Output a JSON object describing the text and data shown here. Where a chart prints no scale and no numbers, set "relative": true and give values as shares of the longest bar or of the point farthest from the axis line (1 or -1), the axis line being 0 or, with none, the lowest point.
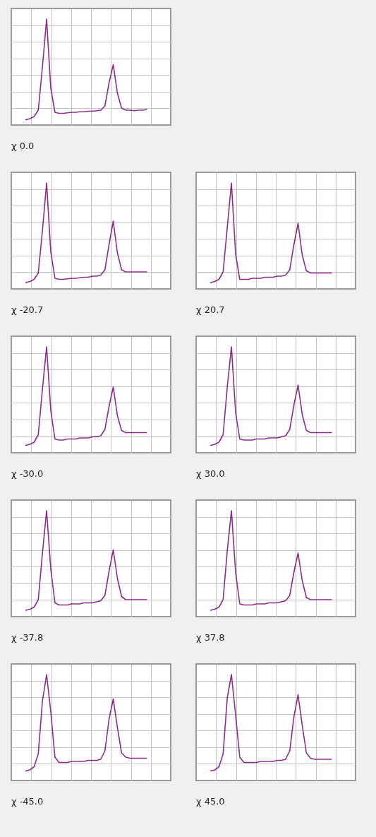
{
  "chart_data": [
    {
      "type": "line",
      "title": "χ 0.0",
      "relative": true,
      "grid": true,
      "color": "#8e2c8e",
      "categories": [
        null,
        null,
        null,
        null,
        null,
        null,
        null,
        null,
        null,
        null,
        null,
        null,
        null,
        null,
        null,
        null,
        null,
        null,
        null,
        null,
        null,
        null,
        null,
        null,
        null,
        null,
        null,
        null,
        null,
        null
      ],
      "values": [
        0.05,
        0.06,
        0.08,
        0.14,
        0.55,
        1.0,
        0.35,
        0.12,
        0.11,
        0.11,
        0.115,
        0.12,
        0.12,
        0.125,
        0.125,
        0.13,
        0.13,
        0.135,
        0.14,
        0.18,
        0.4,
        0.57,
        0.3,
        0.16,
        0.14,
        0.14,
        0.135,
        0.14,
        0.14,
        0.145
      ]
    },
    {
      "type": "line",
      "title": "χ -20.7",
      "relative": true,
      "grid": true,
      "color": "#8e2c8e",
      "categories": [
        null,
        null,
        null,
        null,
        null,
        null,
        null,
        null,
        null,
        null,
        null,
        null,
        null,
        null,
        null,
        null,
        null,
        null,
        null,
        null,
        null,
        null,
        null,
        null,
        null,
        null,
        null,
        null,
        null,
        null
      ],
      "values": [
        0.06,
        0.07,
        0.09,
        0.15,
        0.55,
        1.0,
        0.35,
        0.1,
        0.09,
        0.09,
        0.095,
        0.1,
        0.1,
        0.105,
        0.11,
        0.11,
        0.12,
        0.12,
        0.13,
        0.18,
        0.42,
        0.64,
        0.34,
        0.18,
        0.16,
        0.16,
        0.16,
        0.16,
        0.16,
        0.16
      ]
    },
    {
      "type": "line",
      "title": "χ 20.7",
      "relative": true,
      "grid": true,
      "color": "#8e2c8e",
      "categories": [
        null,
        null,
        null,
        null,
        null,
        null,
        null,
        null,
        null,
        null,
        null,
        null,
        null,
        null,
        null,
        null,
        null,
        null,
        null,
        null,
        null,
        null,
        null,
        null,
        null,
        null,
        null,
        null,
        null,
        null
      ],
      "values": [
        0.06,
        0.07,
        0.09,
        0.16,
        0.58,
        1.0,
        0.33,
        0.09,
        0.09,
        0.09,
        0.1,
        0.1,
        0.1,
        0.11,
        0.11,
        0.11,
        0.12,
        0.12,
        0.13,
        0.18,
        0.42,
        0.62,
        0.32,
        0.17,
        0.15,
        0.15,
        0.15,
        0.15,
        0.15,
        0.15
      ]
    },
    {
      "type": "line",
      "title": "χ -30.0",
      "relative": true,
      "grid": true,
      "color": "#8e2c8e",
      "categories": [
        null,
        null,
        null,
        null,
        null,
        null,
        null,
        null,
        null,
        null,
        null,
        null,
        null,
        null,
        null,
        null,
        null,
        null,
        null,
        null,
        null,
        null,
        null,
        null,
        null,
        null,
        null,
        null,
        null,
        null
      ],
      "values": [
        0.07,
        0.08,
        0.1,
        0.17,
        0.6,
        1.0,
        0.4,
        0.13,
        0.12,
        0.12,
        0.13,
        0.13,
        0.13,
        0.14,
        0.14,
        0.14,
        0.15,
        0.15,
        0.16,
        0.22,
        0.44,
        0.62,
        0.35,
        0.21,
        0.19,
        0.19,
        0.19,
        0.19,
        0.19,
        0.19
      ]
    },
    {
      "type": "line",
      "title": "χ 30.0",
      "relative": true,
      "grid": true,
      "color": "#8e2c8e",
      "categories": [
        null,
        null,
        null,
        null,
        null,
        null,
        null,
        null,
        null,
        null,
        null,
        null,
        null,
        null,
        null,
        null,
        null,
        null,
        null,
        null,
        null,
        null,
        null,
        null,
        null,
        null,
        null,
        null,
        null,
        null
      ],
      "values": [
        0.07,
        0.08,
        0.1,
        0.17,
        0.62,
        1.0,
        0.38,
        0.13,
        0.12,
        0.12,
        0.12,
        0.13,
        0.13,
        0.13,
        0.14,
        0.14,
        0.14,
        0.15,
        0.16,
        0.22,
        0.45,
        0.64,
        0.36,
        0.21,
        0.19,
        0.19,
        0.19,
        0.19,
        0.19,
        0.19
      ]
    },
    {
      "type": "line",
      "title": "χ -37.8",
      "relative": true,
      "grid": true,
      "color": "#8e2c8e",
      "categories": [
        null,
        null,
        null,
        null,
        null,
        null,
        null,
        null,
        null,
        null,
        null,
        null,
        null,
        null,
        null,
        null,
        null,
        null,
        null,
        null,
        null,
        null,
        null,
        null,
        null,
        null,
        null,
        null,
        null,
        null
      ],
      "values": [
        0.06,
        0.07,
        0.09,
        0.16,
        0.6,
        1.0,
        0.45,
        0.13,
        0.11,
        0.11,
        0.11,
        0.12,
        0.12,
        0.12,
        0.13,
        0.13,
        0.13,
        0.14,
        0.15,
        0.2,
        0.43,
        0.63,
        0.36,
        0.19,
        0.16,
        0.16,
        0.16,
        0.16,
        0.16,
        0.16
      ]
    },
    {
      "type": "line",
      "title": "χ 37.8",
      "relative": true,
      "grid": true,
      "color": "#8e2c8e",
      "categories": [
        null,
        null,
        null,
        null,
        null,
        null,
        null,
        null,
        null,
        null,
        null,
        null,
        null,
        null,
        null,
        null,
        null,
        null,
        null,
        null,
        null,
        null,
        null,
        null,
        null,
        null,
        null,
        null,
        null,
        null
      ],
      "values": [
        0.06,
        0.07,
        0.09,
        0.16,
        0.62,
        1.0,
        0.42,
        0.12,
        0.11,
        0.11,
        0.11,
        0.12,
        0.12,
        0.12,
        0.13,
        0.13,
        0.13,
        0.14,
        0.15,
        0.2,
        0.42,
        0.6,
        0.34,
        0.18,
        0.16,
        0.16,
        0.16,
        0.16,
        0.16,
        0.16
      ]
    },
    {
      "type": "line",
      "title": "χ -45.0",
      "relative": true,
      "grid": true,
      "color": "#8e2c8e",
      "categories": [
        null,
        null,
        null,
        null,
        null,
        null,
        null,
        null,
        null,
        null,
        null,
        null,
        null,
        null,
        null,
        null,
        null,
        null,
        null,
        null,
        null,
        null,
        null,
        null,
        null,
        null,
        null,
        null,
        null,
        null
      ],
      "values": [
        0.09,
        0.1,
        0.13,
        0.25,
        0.75,
        1.0,
        0.65,
        0.22,
        0.17,
        0.17,
        0.17,
        0.18,
        0.18,
        0.18,
        0.18,
        0.19,
        0.19,
        0.19,
        0.2,
        0.28,
        0.58,
        0.77,
        0.5,
        0.26,
        0.22,
        0.21,
        0.21,
        0.21,
        0.21,
        0.21
      ]
    },
    {
      "type": "line",
      "title": "χ 45.0",
      "relative": true,
      "grid": true,
      "color": "#8e2c8e",
      "categories": [
        null,
        null,
        null,
        null,
        null,
        null,
        null,
        null,
        null,
        null,
        null,
        null,
        null,
        null,
        null,
        null,
        null,
        null,
        null,
        null,
        null,
        null,
        null,
        null,
        null,
        null,
        null,
        null,
        null,
        null
      ],
      "values": [
        0.09,
        0.1,
        0.13,
        0.25,
        0.78,
        1.0,
        0.62,
        0.22,
        0.17,
        0.17,
        0.17,
        0.17,
        0.18,
        0.18,
        0.18,
        0.18,
        0.19,
        0.19,
        0.2,
        0.28,
        0.6,
        0.81,
        0.52,
        0.26,
        0.21,
        0.2,
        0.2,
        0.2,
        0.2,
        0.2
      ]
    }
  ]
}
